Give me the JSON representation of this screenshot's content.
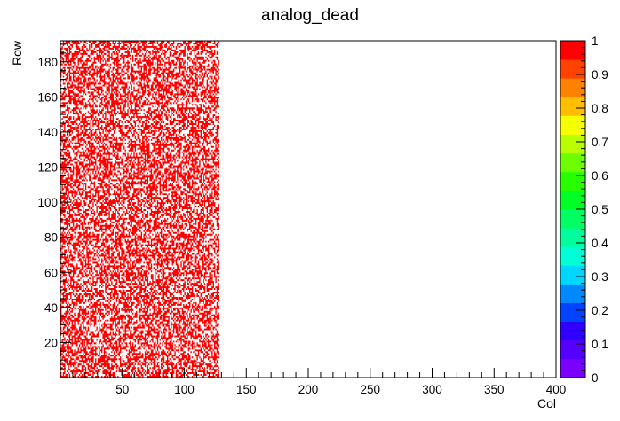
{
  "chart_data": {
    "type": "heatmap",
    "title": "analog_dead",
    "xlabel": "Col",
    "ylabel": "Row",
    "xlim": [
      0,
      400
    ],
    "ylim": [
      0,
      192
    ],
    "x_ticks": [
      50,
      100,
      150,
      200,
      250,
      300,
      350,
      400
    ],
    "y_ticks": [
      20,
      40,
      60,
      80,
      100,
      120,
      140,
      160,
      180
    ],
    "z_range": [
      0,
      1
    ],
    "z_ticks": [
      0,
      0.1,
      0.2,
      0.3,
      0.4,
      0.5,
      0.6,
      0.7,
      0.8,
      0.9,
      1
    ],
    "filled_region": {
      "col_range": [
        0,
        128
      ],
      "row_range": [
        0,
        192
      ]
    },
    "fill_fraction": 0.55,
    "cell_value": 1,
    "grid": false,
    "colors": {
      "cell": "#ff0000",
      "palette": [
        "#7a00ff",
        "#5500ff",
        "#2f00ff",
        "#0043ff",
        "#0088ff",
        "#00d7ff",
        "#00ffd5",
        "#00ff9c",
        "#00ff62",
        "#00ff26",
        "#27ff00",
        "#6dff00",
        "#b9ff00",
        "#f6ff00",
        "#ffbf00",
        "#ff8100",
        "#ff4200",
        "#ff0000"
      ]
    }
  }
}
